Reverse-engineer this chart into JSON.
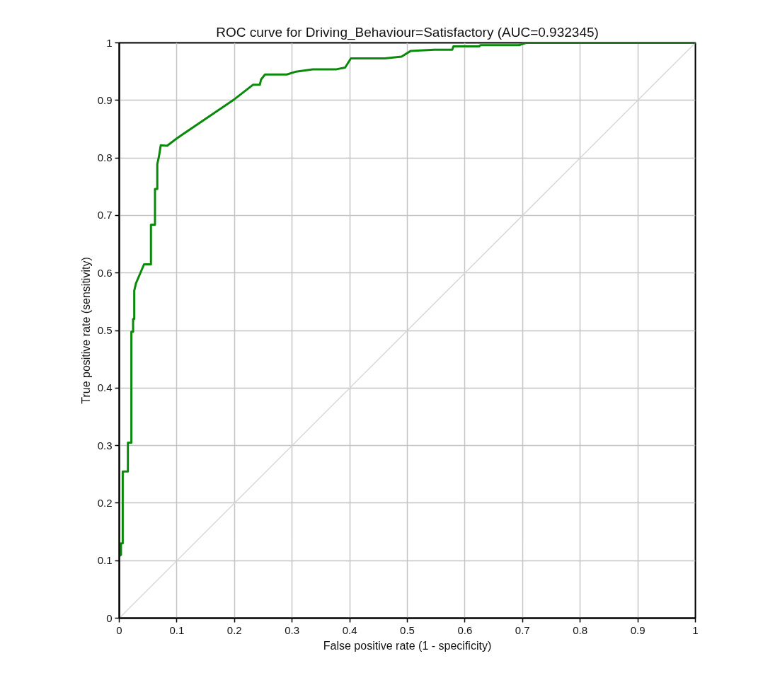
{
  "chart_data": {
    "type": "line",
    "title": "ROC curve for Driving_Behaviour=Satisfactory (AUC=0.932345)",
    "xlabel": "False positive rate (1 - specificity)",
    "ylabel": "True positive rate (sensitivity)",
    "xlim": [
      0,
      1
    ],
    "ylim": [
      0,
      1
    ],
    "xticks": [
      0,
      0.1,
      0.2,
      0.3,
      0.4,
      0.5,
      0.6,
      0.7,
      0.8,
      0.9,
      1
    ],
    "yticks": [
      0,
      0.1,
      0.2,
      0.3,
      0.4,
      0.5,
      0.6,
      0.7,
      0.8,
      0.9,
      1
    ],
    "grid": true,
    "line_style": "solid",
    "series": [
      {
        "color": "#0a8a0a",
        "x": [
          0,
          0,
          0.003,
          0.003,
          0.006,
          0.006,
          0.015,
          0.015,
          0.021,
          0.021,
          0.024,
          0.024,
          0.026,
          0.026,
          0.029,
          0.043,
          0.055,
          0.055,
          0.062,
          0.062,
          0.066,
          0.066,
          0.069,
          0.072,
          0.083,
          0.1,
          0.2,
          0.232,
          0.244,
          0.246,
          0.253,
          0.291,
          0.307,
          0.336,
          0.377,
          0.392,
          0.402,
          0.461,
          0.49,
          0.506,
          0.547,
          0.578,
          0.58,
          0.625,
          0.627,
          0.694,
          0.706,
          1.0
        ],
        "values": [
          0,
          0.108,
          0.11,
          0.13,
          0.13,
          0.255,
          0.255,
          0.305,
          0.305,
          0.498,
          0.498,
          0.52,
          0.52,
          0.569,
          0.582,
          0.615,
          0.615,
          0.684,
          0.684,
          0.746,
          0.746,
          0.789,
          0.803,
          0.822,
          0.821,
          0.834,
          0.902,
          0.927,
          0.927,
          0.936,
          0.945,
          0.945,
          0.95,
          0.954,
          0.954,
          0.957,
          0.973,
          0.973,
          0.976,
          0.986,
          0.988,
          0.988,
          0.994,
          0.994,
          0.996,
          0.996,
          1.0,
          1.0
        ]
      },
      {
        "color": "#d4d4d4",
        "x": [
          0,
          1
        ],
        "values": [
          0,
          1
        ]
      }
    ]
  }
}
